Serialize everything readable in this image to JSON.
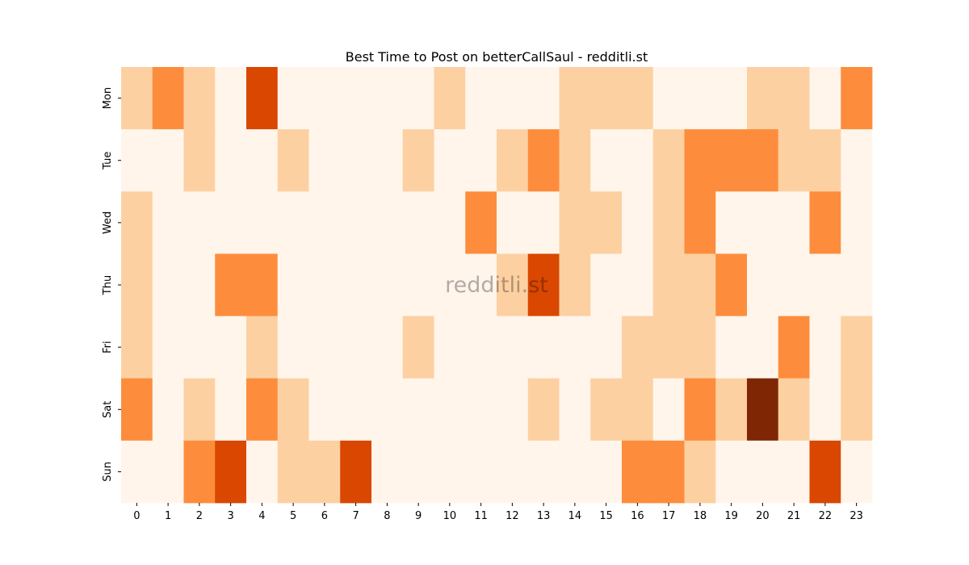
{
  "chart_data": {
    "type": "heatmap",
    "title": "Best Time to Post on betterCallSaul - redditli.st",
    "watermark": "redditli.st",
    "x_categories": [
      "0",
      "1",
      "2",
      "3",
      "4",
      "5",
      "6",
      "7",
      "8",
      "9",
      "10",
      "11",
      "12",
      "13",
      "14",
      "15",
      "16",
      "17",
      "18",
      "19",
      "20",
      "21",
      "22",
      "23"
    ],
    "y_categories": [
      "Mon",
      "Tue",
      "Wed",
      "Thu",
      "Fri",
      "Sat",
      "Sun"
    ],
    "levels": 5,
    "color_scale": [
      "#fff5eb",
      "#fdd0a2",
      "#fd8d3c",
      "#d94701",
      "#7f2704"
    ],
    "values": [
      [
        1,
        2,
        1,
        0,
        3,
        0,
        0,
        0,
        0,
        0,
        1,
        0,
        0,
        0,
        1,
        1,
        1,
        0,
        0,
        0,
        1,
        1,
        0,
        2
      ],
      [
        0,
        0,
        1,
        0,
        0,
        1,
        0,
        0,
        0,
        1,
        0,
        0,
        1,
        2,
        1,
        0,
        0,
        1,
        2,
        2,
        2,
        1,
        1,
        0
      ],
      [
        1,
        0,
        0,
        0,
        0,
        0,
        0,
        0,
        0,
        0,
        0,
        2,
        0,
        0,
        1,
        1,
        0,
        1,
        2,
        0,
        0,
        0,
        2,
        0
      ],
      [
        1,
        0,
        0,
        2,
        2,
        0,
        0,
        0,
        0,
        0,
        0,
        0,
        1,
        3,
        1,
        0,
        0,
        1,
        1,
        2,
        0,
        0,
        0,
        0
      ],
      [
        1,
        0,
        0,
        0,
        1,
        0,
        0,
        0,
        0,
        1,
        0,
        0,
        0,
        0,
        0,
        0,
        1,
        1,
        1,
        0,
        0,
        2,
        0,
        1
      ],
      [
        2,
        0,
        1,
        0,
        2,
        1,
        0,
        0,
        0,
        0,
        0,
        0,
        0,
        1,
        0,
        1,
        1,
        0,
        2,
        1,
        4,
        1,
        0,
        1
      ],
      [
        0,
        0,
        2,
        3,
        0,
        1,
        1,
        3,
        0,
        0,
        0,
        0,
        0,
        0,
        0,
        0,
        2,
        2,
        1,
        0,
        0,
        0,
        3,
        0
      ]
    ]
  }
}
